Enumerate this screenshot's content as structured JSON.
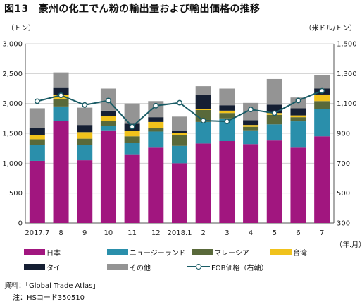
{
  "title": "図13　豪州の化工でん粉の輸出量および輸出価格の推移",
  "unit_left": "（トン）",
  "unit_right": "（米ドル/トン）",
  "unit_x": "（年.月）",
  "notes": {
    "source": "資料：「Global Trade Atlas」",
    "hs": "注：HSコード350510"
  },
  "chart_data": {
    "type": "bar",
    "stacked": true,
    "categories": [
      "2017.7",
      "8",
      "9",
      "10",
      "11",
      "12",
      "2018.1",
      "2",
      "3",
      "4",
      "5",
      "6",
      "7"
    ],
    "ylim": [
      0,
      3000
    ],
    "yticks": [
      0,
      500,
      1000,
      1500,
      2000,
      2500,
      3000
    ],
    "ytick_labels": [
      "0",
      "500",
      "1,000",
      "1,500",
      "2,000",
      "2,500",
      "3,000"
    ],
    "y2lim": [
      300,
      1500
    ],
    "y2ticks": [
      300,
      500,
      700,
      900,
      1100,
      1300,
      1500
    ],
    "y2tick_labels": [
      "300",
      "500",
      "700",
      "900",
      "1,100",
      "1,300",
      "1,500"
    ],
    "grid": true,
    "legend_position": "bottom",
    "series": [
      {
        "name": "日本",
        "color": "#a1167f",
        "values": [
          1040,
          1710,
          1050,
          1550,
          1150,
          1260,
          1000,
          1330,
          1370,
          1320,
          1380,
          1260,
          1450
        ]
      },
      {
        "name": "ニュージーランド",
        "color": "#2a8fab",
        "values": [
          260,
          240,
          250,
          80,
          190,
          270,
          290,
          360,
          380,
          230,
          270,
          440,
          460
        ]
      },
      {
        "name": "マレーシア",
        "color": "#59693a",
        "values": [
          100,
          130,
          110,
          80,
          110,
          60,
          180,
          200,
          90,
          60,
          160,
          70,
          130
        ]
      },
      {
        "name": "台湾",
        "color": "#f0c21c",
        "values": [
          70,
          60,
          110,
          80,
          90,
          100,
          40,
          20,
          40,
          30,
          30,
          30,
          110
        ]
      },
      {
        "name": "タイ",
        "color": "#151f33",
        "values": [
          120,
          120,
          120,
          90,
          120,
          80,
          40,
          240,
          90,
          80,
          140,
          120,
          100
        ]
      },
      {
        "name": "その他",
        "color": "#949494",
        "values": [
          330,
          260,
          290,
          370,
          340,
          270,
          230,
          140,
          280,
          290,
          430,
          180,
          220
        ]
      }
    ],
    "line_series": {
      "name": "FOB価格（右軸）",
      "axis": "right",
      "color": "#1a5c66",
      "values": [
        1115,
        1155,
        1090,
        1120,
        945,
        1085,
        1105,
        985,
        980,
        1060,
        1035,
        1120,
        1185
      ]
    }
  },
  "icons": {
    "line_legend_marker": "circle-marker-icon"
  }
}
